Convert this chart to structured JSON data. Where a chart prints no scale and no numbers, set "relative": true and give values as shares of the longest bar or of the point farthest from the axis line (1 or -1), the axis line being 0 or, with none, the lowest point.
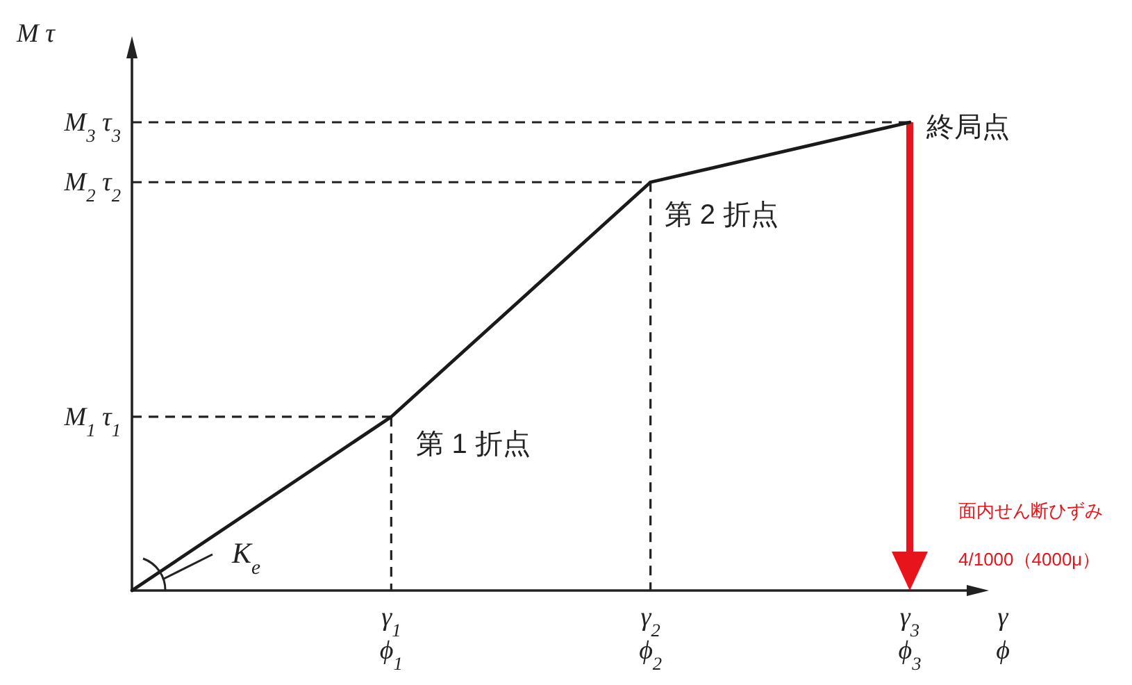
{
  "chart_data": {
    "type": "line",
    "ylabel": "M  τ",
    "xlabel": "γ\nϕ",
    "relative": true,
    "categories": [
      null,
      "γ$_{1}$\nϕ$_{1}$",
      "γ$_{2}$\nϕ$_{2}$",
      "γ$_{3}$\nϕ$_{3}$"
    ],
    "series": [
      {
        "color": "#1a1a1a",
        "values": [
          0,
          0.371,
          0.872,
          1
        ]
      }
    ],
    "annotations": [
      "第 1 折点",
      "第 2 折点",
      "終局点",
      "M$_{1}$  τ$_{1}$",
      "M$_{2}$  τ$_{2}$",
      "M$_{3}$  τ$_{3}$",
      "K$_{e}$"
    ],
    "ref_lines": [
      {
        "axis": "x",
        "value": "γ$_{3}$\nϕ$_{3}$",
        "color": "#e8141b",
        "label": "面内せん断ひずみ\n4/1000（4000μ）"
      }
    ],
    "grid": true,
    "marker": "none",
    "line_style": "solid"
  }
}
